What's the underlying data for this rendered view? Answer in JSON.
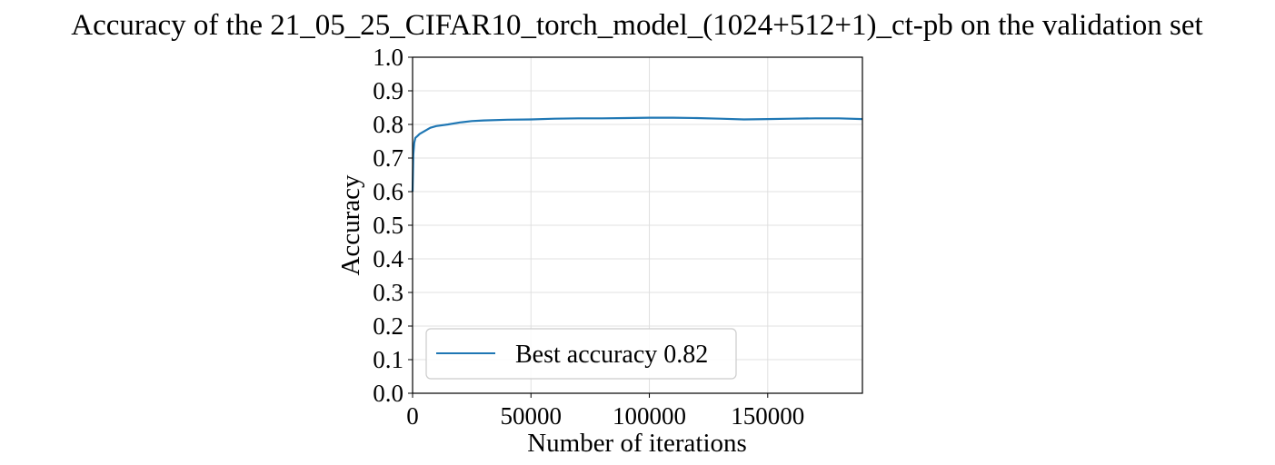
{
  "chart_data": {
    "type": "line",
    "title": "Accuracy of the 21_05_25_CIFAR10_torch_model_(1024+512+1)_ct-pb on the validation set",
    "xlabel": "Number of iterations",
    "ylabel": "Accuracy",
    "xlim": [
      0,
      190000
    ],
    "ylim": [
      0.0,
      1.0
    ],
    "xticks": [
      0,
      50000,
      100000,
      150000
    ],
    "xtick_labels": [
      "0",
      "50000",
      "100000",
      "150000"
    ],
    "yticks": [
      0.0,
      0.1,
      0.2,
      0.3,
      0.4,
      0.5,
      0.6,
      0.7,
      0.8,
      0.9,
      1.0
    ],
    "ytick_labels": [
      "0.0",
      "0.1",
      "0.2",
      "0.3",
      "0.4",
      "0.5",
      "0.6",
      "0.7",
      "0.8",
      "0.9",
      "1.0"
    ],
    "grid": true,
    "legend_position": "lower-left",
    "series": [
      {
        "name": "Best accuracy 0.82",
        "color": "#1f77b4",
        "x": [
          0,
          300,
          700,
          1200,
          2000,
          3000,
          5000,
          7500,
          10000,
          15000,
          20000,
          25000,
          30000,
          40000,
          50000,
          60000,
          70000,
          80000,
          90000,
          100000,
          110000,
          120000,
          130000,
          140000,
          150000,
          160000,
          170000,
          180000,
          190000
        ],
        "y": [
          0.6,
          0.71,
          0.745,
          0.76,
          0.765,
          0.772,
          0.78,
          0.79,
          0.795,
          0.8,
          0.806,
          0.81,
          0.812,
          0.814,
          0.815,
          0.817,
          0.818,
          0.818,
          0.819,
          0.82,
          0.82,
          0.819,
          0.817,
          0.815,
          0.816,
          0.817,
          0.818,
          0.818,
          0.816
        ]
      }
    ]
  }
}
